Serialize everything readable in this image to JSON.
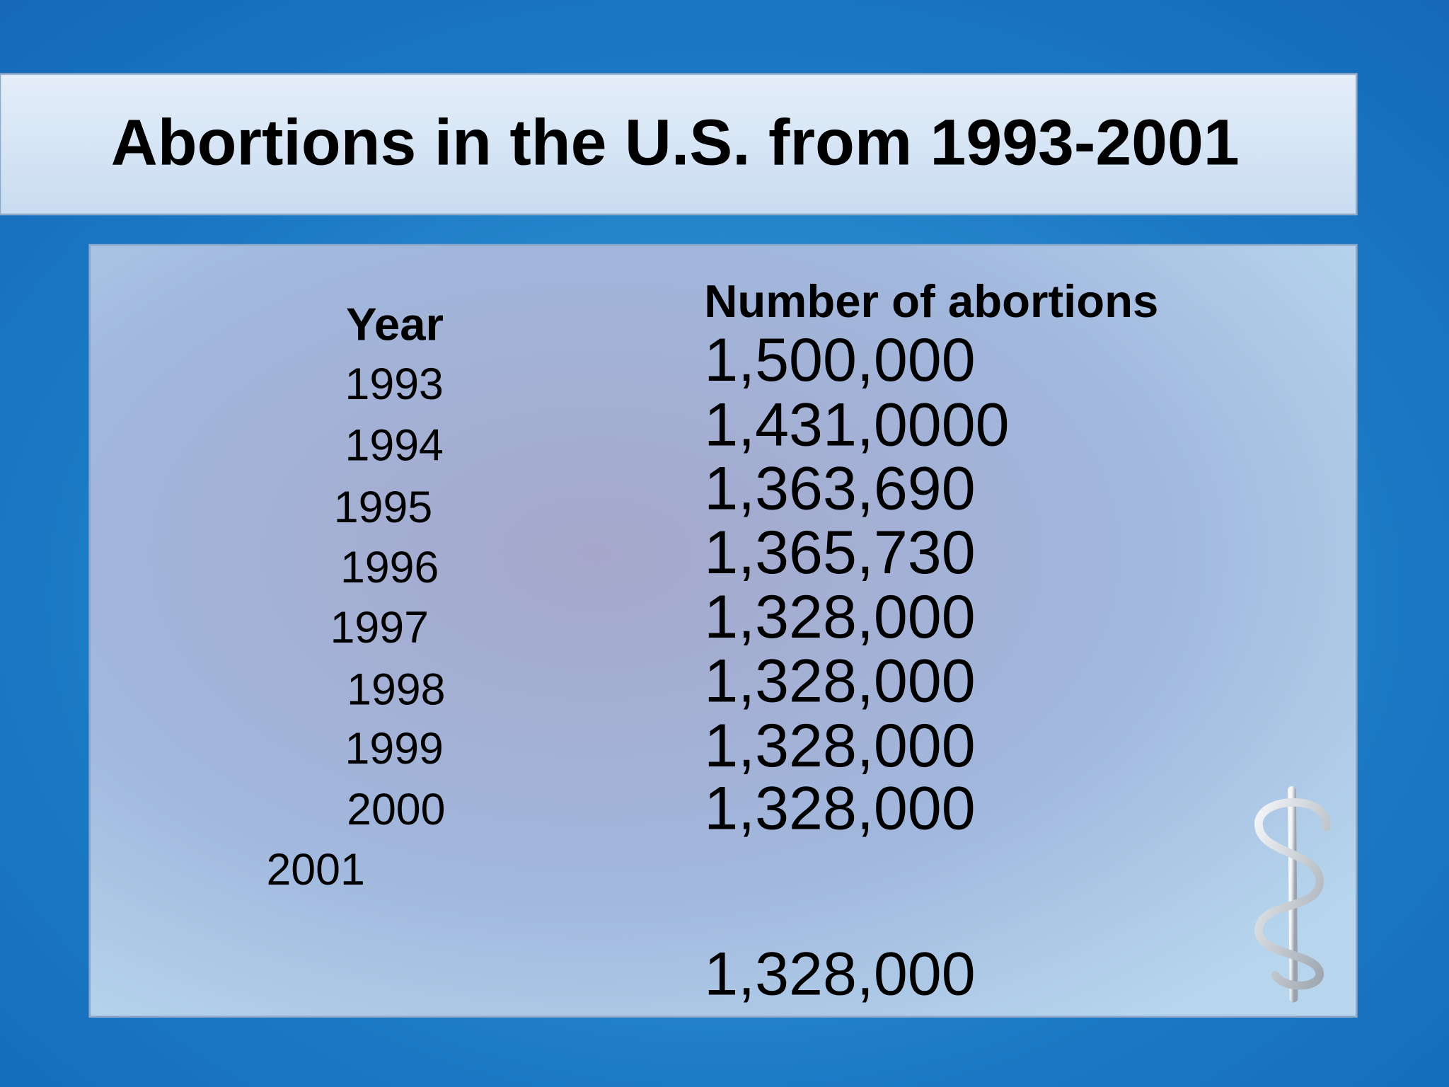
{
  "header": {
    "title": "Abortions in the U.S. from 1993-2001"
  },
  "table": {
    "columns": [
      "Year",
      "Number of abortions"
    ],
    "rows": [
      [
        "1993",
        "1,500,000"
      ],
      [
        "1994",
        "1,431,0000"
      ],
      [
        "1995",
        "1,363,690"
      ],
      [
        "1996",
        "1,365,730"
      ],
      [
        "1997",
        "1,328,000"
      ],
      [
        "1998",
        "1,328,000"
      ],
      [
        "1999",
        "1,328,000"
      ],
      [
        "2000",
        "1,328,000"
      ],
      [
        "2001",
        "1,328,000"
      ]
    ]
  }
}
